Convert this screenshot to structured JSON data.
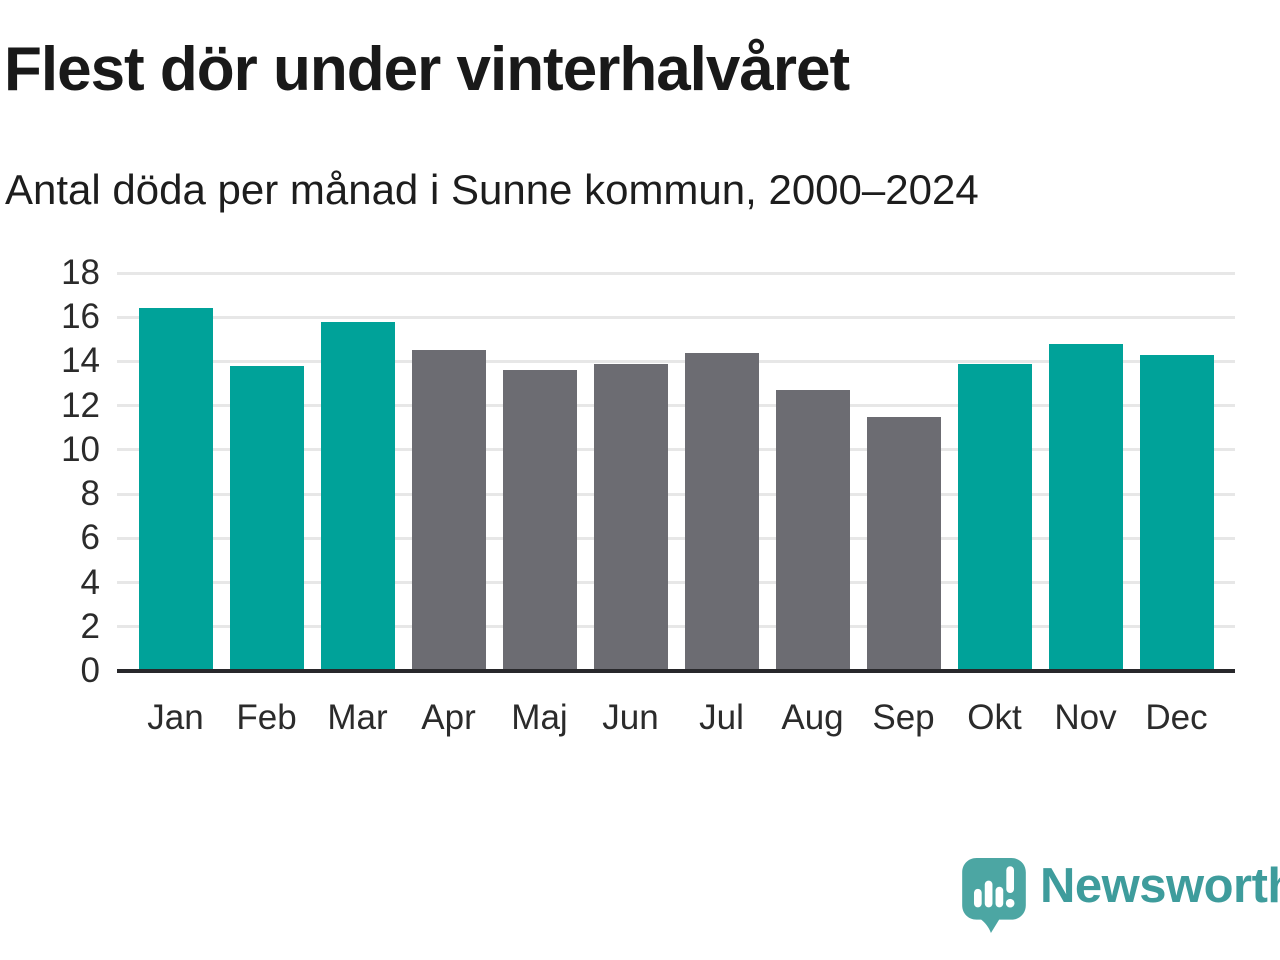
{
  "chart_data": {
    "type": "bar",
    "title": "Flest dör under vinterhalvåret",
    "subtitle": "Antal döda per månad i Sunne kommun, 2000–2024",
    "categories": [
      "Jan",
      "Feb",
      "Mar",
      "Apr",
      "Maj",
      "Jun",
      "Jul",
      "Aug",
      "Sep",
      "Okt",
      "Nov",
      "Dec"
    ],
    "values": [
      16.4,
      13.8,
      15.8,
      14.5,
      13.6,
      13.9,
      14.4,
      12.7,
      11.5,
      13.9,
      14.8,
      14.3
    ],
    "bar_colors": [
      "#00A299",
      "#00A299",
      "#00A299",
      "#6C6C72",
      "#6C6C72",
      "#6C6C72",
      "#6C6C72",
      "#6C6C72",
      "#6C6C72",
      "#00A299",
      "#00A299",
      "#00A299"
    ],
    "xlabel": "",
    "ylabel": "",
    "ylim": [
      0,
      18
    ],
    "yticks": [
      0,
      2,
      4,
      6,
      8,
      10,
      12,
      14,
      16,
      18
    ],
    "grid": true,
    "legend": "none",
    "colors": {
      "winter_highlight": "#00A299",
      "summer_muted": "#6C6C72",
      "gridline": "#e7e7e7",
      "axis_line": "#28282b",
      "text": "#191919"
    }
  },
  "branding": {
    "name": "Newsworthy",
    "logo_color": "#4CA6A3",
    "logo_shadow_color": "#3E8D90",
    "wordmark_color": "#3E9C9C",
    "logo_icon": "speech-bubble-bar-chart-exclamation"
  }
}
